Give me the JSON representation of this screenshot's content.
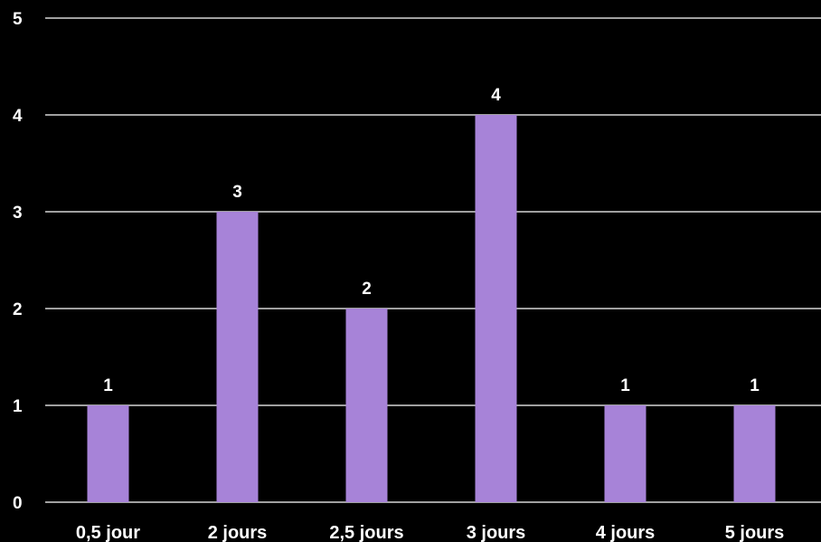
{
  "chart_data": {
    "type": "bar",
    "categories": [
      "0,5 jour",
      "2 jours",
      "2,5 jours",
      "3 jours",
      "4 jours",
      "5 jours"
    ],
    "values": [
      1,
      3,
      2,
      4,
      1,
      1
    ],
    "value_labels": [
      "1",
      "3",
      "2",
      "4",
      "1",
      "1"
    ],
    "y_ticks": [
      "0",
      "1",
      "2",
      "3",
      "4",
      "5"
    ],
    "ylim": [
      0,
      5
    ],
    "grid": true,
    "title": "",
    "xlabel": "",
    "ylabel": ""
  },
  "colors": {
    "background": "#000000",
    "bar": "#a783d8",
    "grid": "#ffffff",
    "text": "#ffffff"
  }
}
